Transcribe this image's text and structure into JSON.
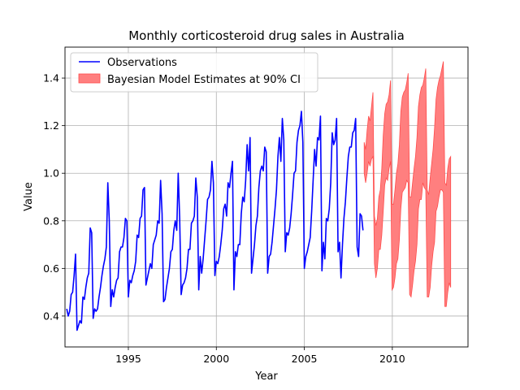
{
  "chart_data": {
    "type": "line",
    "title": "Monthly corticosteroid drug sales in Australia",
    "xlabel": "Year",
    "ylabel": "Value",
    "xlim": [
      1991.4,
      2014.3
    ],
    "ylim": [
      0.27,
      1.53
    ],
    "xticks": [
      1995,
      2000,
      2005,
      2010
    ],
    "yticks": [
      0.4,
      0.6,
      0.8,
      1.0,
      1.2,
      1.4
    ],
    "grid": true,
    "legend_position": "top-left",
    "colors": {
      "observations": "#0000ff",
      "ci_fill": "#ff7f7f",
      "ci_edge": "#ff4c4c"
    },
    "series": [
      {
        "name": "Observations",
        "kind": "line",
        "start_year": 1991.5,
        "step": 0.0833333,
        "values": [
          0.43,
          0.4,
          0.42,
          0.49,
          0.5,
          0.57,
          0.66,
          0.34,
          0.36,
          0.38,
          0.37,
          0.48,
          0.47,
          0.52,
          0.56,
          0.58,
          0.77,
          0.75,
          0.39,
          0.43,
          0.42,
          0.43,
          0.48,
          0.52,
          0.57,
          0.61,
          0.64,
          0.69,
          0.96,
          0.8,
          0.44,
          0.51,
          0.48,
          0.52,
          0.55,
          0.56,
          0.67,
          0.69,
          0.69,
          0.73,
          0.81,
          0.8,
          0.48,
          0.55,
          0.54,
          0.57,
          0.59,
          0.63,
          0.74,
          0.73,
          0.81,
          0.82,
          0.93,
          0.94,
          0.53,
          0.56,
          0.59,
          0.62,
          0.6,
          0.7,
          0.72,
          0.74,
          0.8,
          0.79,
          0.97,
          0.83,
          0.46,
          0.47,
          0.52,
          0.56,
          0.6,
          0.67,
          0.68,
          0.76,
          0.8,
          0.76,
          1.0,
          0.81,
          0.49,
          0.53,
          0.54,
          0.56,
          0.6,
          0.68,
          0.68,
          0.79,
          0.8,
          0.82,
          0.98,
          0.9,
          0.51,
          0.65,
          0.58,
          0.64,
          0.72,
          0.8,
          0.89,
          0.9,
          0.93,
          1.05,
          0.96,
          0.57,
          0.63,
          0.62,
          0.65,
          0.7,
          0.76,
          0.85,
          0.87,
          0.82,
          0.96,
          0.94,
          1.0,
          1.05,
          0.51,
          0.67,
          0.65,
          0.7,
          0.7,
          0.83,
          0.9,
          0.88,
          0.97,
          1.12,
          1.01,
          1.15,
          0.58,
          0.64,
          0.7,
          0.78,
          0.82,
          0.94,
          1.01,
          1.03,
          1.01,
          1.11,
          1.09,
          0.58,
          0.65,
          0.66,
          0.71,
          0.78,
          0.85,
          0.93,
          1.07,
          1.15,
          1.05,
          1.23,
          1.14,
          0.67,
          0.75,
          0.74,
          0.77,
          0.83,
          0.91,
          1.0,
          1.01,
          1.13,
          1.18,
          1.2,
          1.26,
          1.13,
          0.6,
          0.65,
          0.67,
          0.7,
          0.73,
          0.84,
          0.97,
          1.1,
          1.03,
          1.15,
          1.14,
          1.24,
          0.59,
          0.71,
          0.64,
          0.81,
          0.8,
          0.85,
          0.96,
          1.17,
          1.12,
          1.14,
          1.23,
          0.67,
          0.71,
          0.56,
          0.7,
          0.81,
          0.88,
          0.98,
          1.07,
          1.11,
          1.11,
          1.17,
          1.18,
          1.23,
          0.69,
          0.65,
          0.83,
          0.82,
          0.76
        ]
      },
      {
        "name": "Bayesian Model Estimates at 90% CI",
        "kind": "band",
        "start_year": 2008.4,
        "step": 0.0833333,
        "lower": [
          1.0,
          0.96,
          1.0,
          1.05,
          1.03,
          1.06,
          1.07,
          0.62,
          0.56,
          0.6,
          0.68,
          0.68,
          0.74,
          0.84,
          0.95,
          0.98,
          0.97,
          1.02,
          1.05,
          0.51,
          0.52,
          0.56,
          0.62,
          0.64,
          0.72,
          0.85,
          0.92,
          0.93,
          0.94,
          0.97,
          0.96,
          0.49,
          0.48,
          0.53,
          0.59,
          0.63,
          0.7,
          0.85,
          0.89,
          0.89,
          0.96,
          0.94,
          0.93,
          0.48,
          0.48,
          0.52,
          0.61,
          0.67,
          0.71,
          0.84,
          0.86,
          0.9,
          0.93,
          0.93,
          0.92,
          0.44,
          0.44,
          0.5,
          0.54,
          0.52
        ],
        "upper": [
          1.13,
          1.1,
          1.18,
          1.24,
          1.22,
          1.28,
          1.34,
          0.82,
          0.78,
          0.81,
          0.9,
          0.93,
          1.02,
          1.16,
          1.25,
          1.29,
          1.3,
          1.33,
          1.39,
          0.87,
          0.87,
          0.93,
          1.0,
          1.04,
          1.12,
          1.26,
          1.32,
          1.34,
          1.35,
          1.38,
          1.42,
          0.9,
          0.9,
          0.96,
          1.02,
          1.07,
          1.15,
          1.28,
          1.33,
          1.36,
          1.37,
          1.4,
          1.44,
          0.93,
          0.91,
          0.98,
          1.04,
          1.1,
          1.19,
          1.31,
          1.36,
          1.39,
          1.41,
          1.44,
          1.47,
          0.96,
          0.95,
          1.02,
          1.06,
          1.07
        ]
      }
    ]
  }
}
